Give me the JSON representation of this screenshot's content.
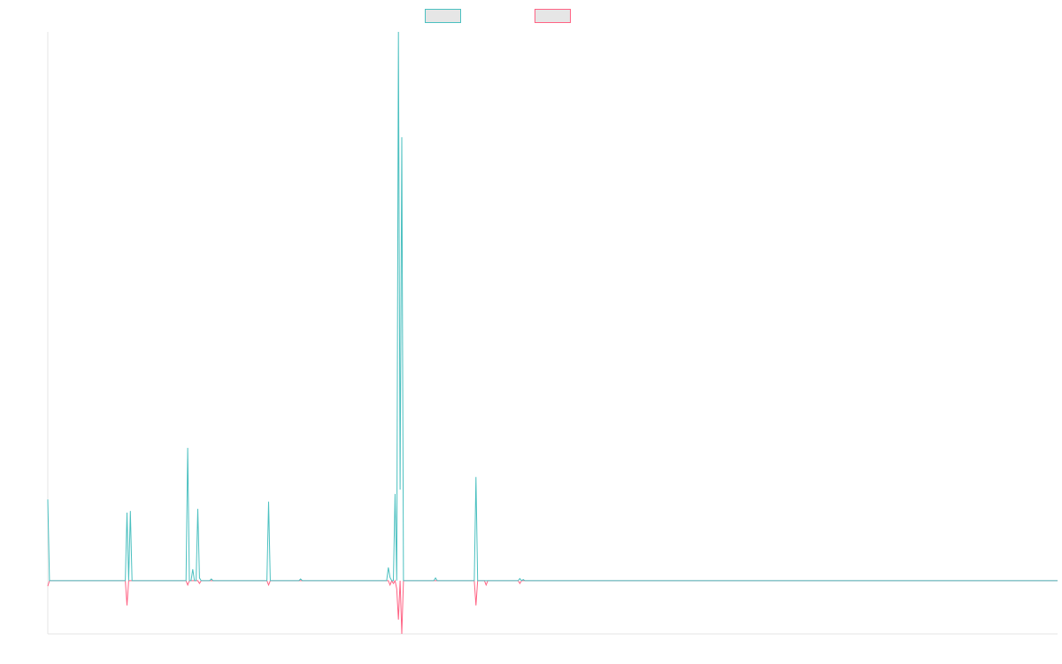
{
  "chart_data": {
    "type": "line",
    "title": "",
    "xlabel": "",
    "ylabel": "",
    "xlim": [
      0,
      599
    ],
    "ylim": [
      -9.7,
      100
    ],
    "grid": false,
    "legend_position": "top",
    "series": [
      {
        "color": "#4bc0c0",
        "points": [
          [
            0,
            14.8
          ],
          [
            1,
            0
          ],
          [
            46,
            0
          ],
          [
            47,
            12.4
          ],
          [
            48,
            0
          ],
          [
            49,
            12.7
          ],
          [
            50,
            0
          ],
          [
            82,
            0
          ],
          [
            83,
            24.2
          ],
          [
            84,
            0
          ],
          [
            85,
            0
          ],
          [
            86,
            2.1
          ],
          [
            87,
            0
          ],
          [
            88,
            0
          ],
          [
            89,
            13.1
          ],
          [
            90,
            0.5
          ],
          [
            91,
            0
          ],
          [
            96,
            0
          ],
          [
            97,
            0.3
          ],
          [
            98,
            0
          ],
          [
            130,
            0
          ],
          [
            131,
            14.4
          ],
          [
            132,
            0
          ],
          [
            149,
            0
          ],
          [
            150,
            0.3
          ],
          [
            151,
            0
          ],
          [
            201,
            0
          ],
          [
            202,
            2.4
          ],
          [
            203,
            0.6
          ],
          [
            204,
            0
          ],
          [
            205,
            0
          ],
          [
            206,
            15.8
          ],
          [
            207,
            0
          ],
          [
            208,
            100
          ],
          [
            209,
            16.6
          ],
          [
            210,
            80.8
          ],
          [
            211,
            0
          ],
          [
            229,
            0
          ],
          [
            230,
            0.5
          ],
          [
            231,
            0
          ],
          [
            253,
            0
          ],
          [
            254,
            18.9
          ],
          [
            255,
            0
          ],
          [
            279,
            0
          ],
          [
            280,
            0.4
          ],
          [
            281,
            0
          ],
          [
            282,
            0.2
          ],
          [
            283,
            0
          ]
        ]
      },
      {
        "color": "#ff6384",
        "points": [
          [
            0,
            -1
          ],
          [
            1,
            0
          ],
          [
            46,
            0
          ],
          [
            47,
            -4.5
          ],
          [
            48,
            0
          ],
          [
            82,
            0
          ],
          [
            83,
            -0.8
          ],
          [
            84,
            0
          ],
          [
            89,
            0
          ],
          [
            90,
            -0.5
          ],
          [
            91,
            0
          ],
          [
            130,
            0
          ],
          [
            131,
            -0.8
          ],
          [
            132,
            0
          ],
          [
            202,
            0
          ],
          [
            203,
            -0.8
          ],
          [
            204,
            0
          ],
          [
            205,
            -0.5
          ],
          [
            206,
            0
          ],
          [
            207,
            -1.5
          ],
          [
            208,
            -7.1
          ],
          [
            209,
            0
          ],
          [
            210,
            -9.7
          ],
          [
            211,
            0
          ],
          [
            253,
            0
          ],
          [
            254,
            -4.5
          ],
          [
            255,
            0
          ],
          [
            259,
            0
          ],
          [
            260,
            -0.8
          ],
          [
            261,
            0
          ],
          [
            279,
            0
          ],
          [
            280,
            -0.5
          ],
          [
            281,
            0
          ]
        ]
      }
    ]
  }
}
